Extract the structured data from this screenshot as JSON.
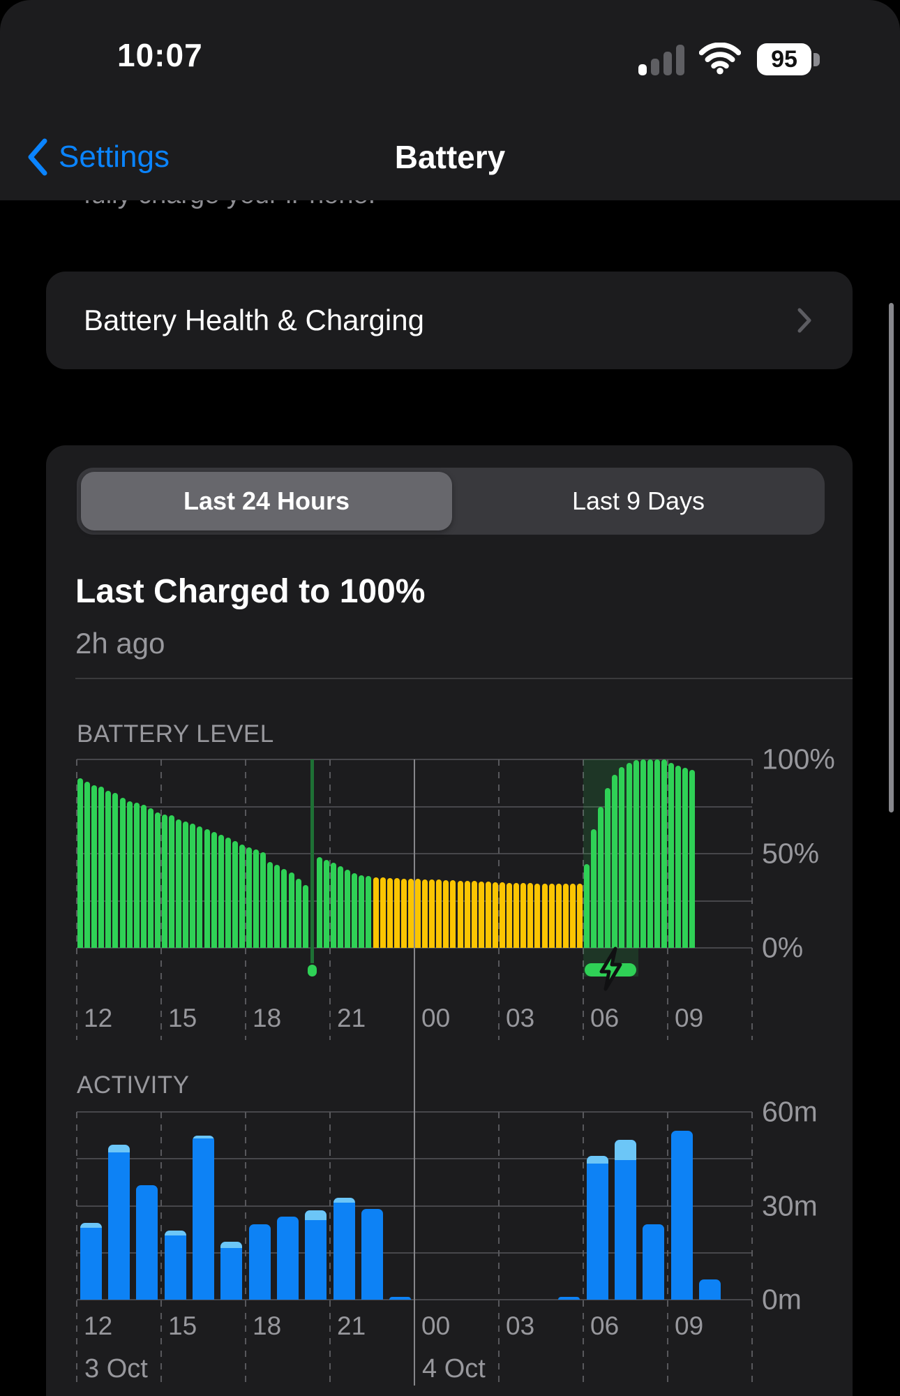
{
  "status_bar": {
    "time": "10:07",
    "battery_percent": "95",
    "signal_filled_bars": 1,
    "signal_total_bars": 4
  },
  "nav": {
    "back_label": "Settings",
    "title": "Battery",
    "clipped_text": "fully charge your iPhone."
  },
  "rows": {
    "battery_health_label": "Battery Health & Charging"
  },
  "segmented": {
    "options": [
      "Last 24 Hours",
      "Last 9 Days"
    ],
    "selected_index": 0
  },
  "summary": {
    "title": "Last Charged to 100%",
    "subtitle": "2h ago"
  },
  "colors": {
    "accent_blue": "#0a84ff",
    "bar_blue": "#0d82f5",
    "bar_blue_light": "#6cc6f7",
    "bar_green": "#2fd156",
    "bar_yellow": "#fbc502",
    "charge_line_green": "#1e7035",
    "charge_shade": "rgba(48,209,88,0.15)",
    "grid_line": "#47474b",
    "midnight_line": "#86868a",
    "axis_text": "#98989d",
    "card_bg": "#1c1c1e"
  },
  "chart_data": [
    {
      "type": "bar",
      "title": "BATTERY LEVEL",
      "ylabel_values": [
        100,
        50,
        0
      ],
      "ylabels": [
        "100%",
        "50%",
        "0%"
      ],
      "gridline_values": [
        100,
        75,
        50,
        25,
        0
      ],
      "ylim": [
        0,
        100
      ],
      "x_ticks": [
        "12",
        "15",
        "18",
        "21",
        "00",
        "03",
        "06",
        "09"
      ],
      "x_tick_hours": [
        0,
        3,
        6,
        9,
        12,
        15,
        18,
        21
      ],
      "bar_interval_minutes": 15,
      "x_start_label": "12:00",
      "segments": [
        {
          "kind": "bars",
          "color": "green",
          "values": [
            90,
            88,
            86.3,
            85.7,
            83.5,
            82.2,
            79.5,
            77.6,
            77,
            76,
            73.9,
            72,
            70.8,
            70.2,
            68.3,
            67.1,
            65.8,
            64.6,
            63,
            61.5,
            59.9,
            58.4,
            56.5,
            54.9,
            53.4,
            52.2,
            50.9,
            45.5,
            44,
            42,
            40,
            36.5,
            33.5
          ]
        },
        {
          "kind": "charge-marker"
        },
        {
          "kind": "bars",
          "color": "green",
          "values": [
            48,
            46.5,
            45.3,
            43.5,
            41.6,
            39.8,
            38.5,
            38
          ]
        },
        {
          "kind": "bars",
          "color": "yellow",
          "values": [
            37.5,
            37.3,
            37.2,
            37,
            36.8,
            36.6,
            36.5,
            36.4,
            36.3,
            36.2,
            36,
            35.8,
            35.6,
            35.5,
            35.4,
            35.3,
            35.2,
            35,
            34.8,
            34.6,
            34.5,
            34.4,
            34.3,
            34.2,
            34.1,
            34,
            34,
            34,
            34,
            34
          ]
        },
        {
          "kind": "bars",
          "color": "green",
          "charging": true,
          "values": [
            44.5,
            63,
            75,
            85,
            92,
            96,
            98,
            99.5,
            100,
            100,
            100,
            100,
            98,
            96.7,
            95.7,
            94.5
          ]
        }
      ],
      "charging_overlay": {
        "start_slot": 72,
        "end_slot": 79.8
      }
    },
    {
      "type": "bar",
      "title": "ACTIVITY",
      "ylabel_values": [
        60,
        30,
        0
      ],
      "ylabels": [
        "60m",
        "30m",
        "0m"
      ],
      "gridline_values": [
        60,
        45,
        30,
        15,
        0
      ],
      "ylim": [
        0,
        60
      ],
      "x_ticks": [
        "12",
        "15",
        "18",
        "21",
        "00",
        "03",
        "06",
        "09"
      ],
      "x_tick_hours": [
        0,
        3,
        6,
        9,
        12,
        15,
        18,
        21
      ],
      "bar_interval_minutes": 60,
      "date_labels": [
        {
          "label": "3 Oct",
          "hour": 0
        },
        {
          "label": "4 Oct",
          "hour": 12
        }
      ],
      "bars": [
        {
          "total": 24.5,
          "light": 1.5
        },
        {
          "total": 49.5,
          "light": 2.5
        },
        {
          "total": 36.5,
          "light": 0
        },
        {
          "total": 22,
          "light": 1.5
        },
        {
          "total": 52.5,
          "light": 1
        },
        {
          "total": 18.5,
          "light": 2
        },
        {
          "total": 24,
          "light": 0
        },
        {
          "total": 26.5,
          "light": 0
        },
        {
          "total": 28.5,
          "light": 3
        },
        {
          "total": 32.5,
          "light": 1.5
        },
        {
          "total": 29,
          "light": 0
        },
        {
          "total": 1,
          "light": 0
        },
        {
          "total": 0,
          "light": 0
        },
        {
          "total": 0,
          "light": 0
        },
        {
          "total": 0,
          "light": 0
        },
        {
          "total": 0,
          "light": 0
        },
        {
          "total": 0,
          "light": 0
        },
        {
          "total": 1,
          "light": 0
        },
        {
          "total": 46,
          "light": 2.5
        },
        {
          "total": 51,
          "light": 6.5
        },
        {
          "total": 24,
          "light": 0
        },
        {
          "total": 54,
          "light": 0
        },
        {
          "total": 6.5,
          "light": 0
        }
      ]
    }
  ]
}
